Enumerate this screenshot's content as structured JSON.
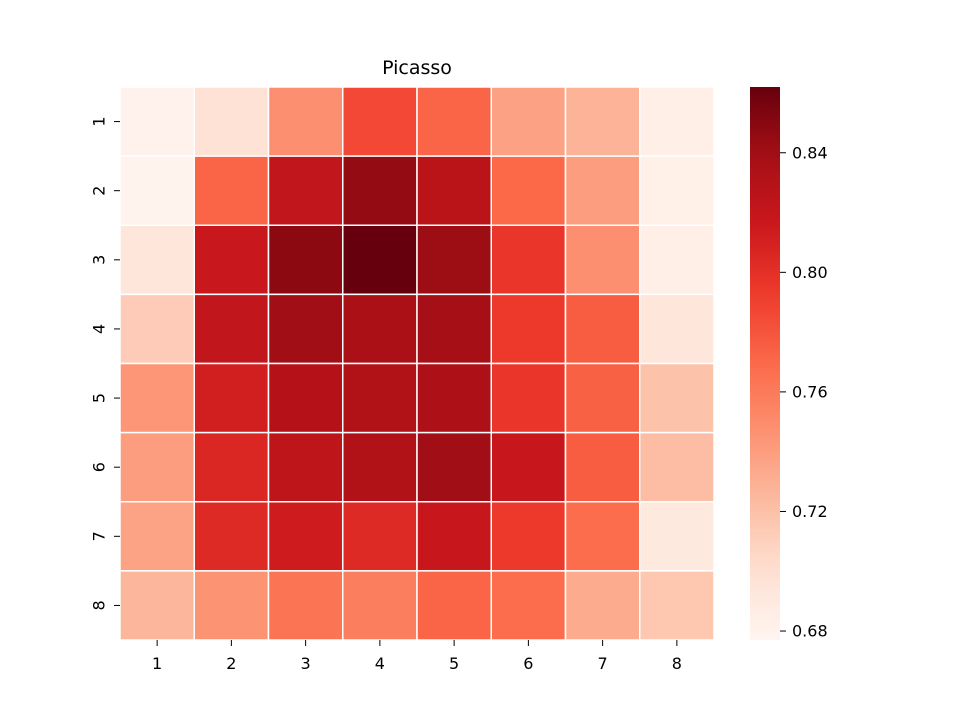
{
  "chart_data": {
    "type": "heatmap",
    "title": "Picasso",
    "xlabel": "",
    "ylabel": "",
    "x_categories": [
      "1",
      "2",
      "3",
      "4",
      "5",
      "6",
      "7",
      "8"
    ],
    "y_categories": [
      "1",
      "2",
      "3",
      "4",
      "5",
      "6",
      "7",
      "8"
    ],
    "values": [
      [
        0.68,
        0.698,
        0.748,
        0.786,
        0.772,
        0.738,
        0.728,
        0.684
      ],
      [
        0.679,
        0.772,
        0.822,
        0.845,
        0.826,
        0.77,
        0.74,
        0.683
      ],
      [
        0.693,
        0.817,
        0.848,
        0.862,
        0.842,
        0.796,
        0.748,
        0.684
      ],
      [
        0.713,
        0.822,
        0.84,
        0.836,
        0.838,
        0.794,
        0.776,
        0.693
      ],
      [
        0.744,
        0.812,
        0.83,
        0.832,
        0.834,
        0.796,
        0.774,
        0.719
      ],
      [
        0.74,
        0.806,
        0.824,
        0.832,
        0.84,
        0.818,
        0.776,
        0.722
      ],
      [
        0.737,
        0.804,
        0.814,
        0.804,
        0.818,
        0.794,
        0.768,
        0.69
      ],
      [
        0.726,
        0.746,
        0.764,
        0.758,
        0.772,
        0.768,
        0.732,
        0.716
      ]
    ],
    "vmin": 0.677,
    "vmax": 0.862,
    "colormap": "Reds",
    "colorbar_ticks": [
      0.68,
      0.72,
      0.76,
      0.8,
      0.84
    ],
    "colorbar_tick_labels": [
      "0.68",
      "0.72",
      "0.76",
      "0.80",
      "0.84"
    ],
    "cell_border_color": "#ffffff",
    "grid": false,
    "colorbar_position": "right"
  }
}
